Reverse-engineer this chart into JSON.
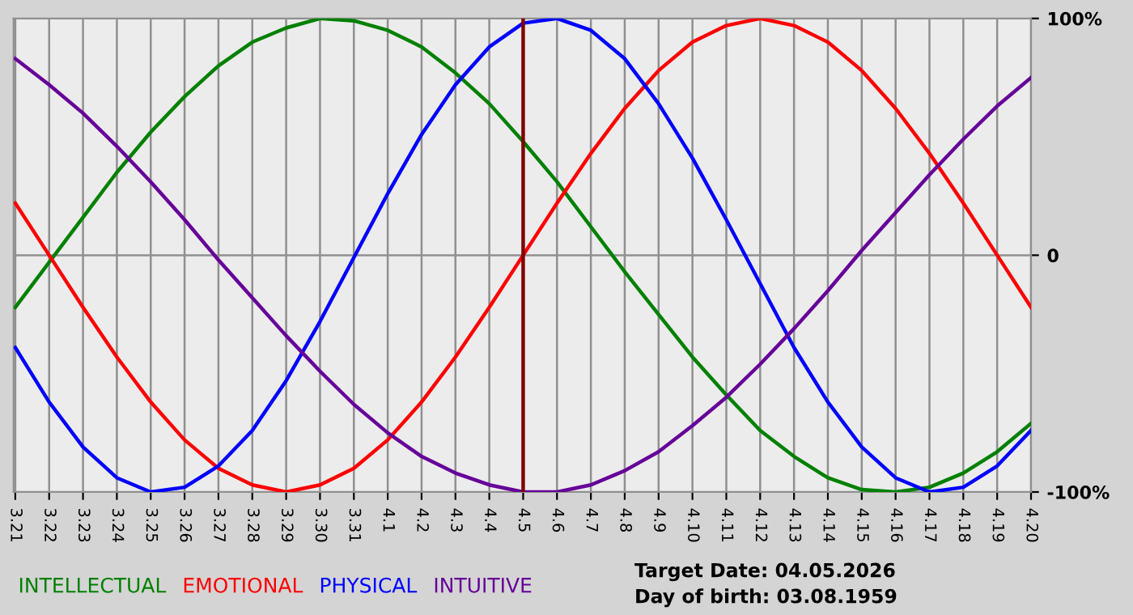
{
  "chart_data": {
    "type": "line",
    "categories": [
      "3.21",
      "3.22",
      "3.23",
      "3.24",
      "3.25",
      "3.26",
      "3.27",
      "3.28",
      "3.29",
      "3.30",
      "3.31",
      "4.1",
      "4.2",
      "4.3",
      "4.4",
      "4.5",
      "4.6",
      "4.7",
      "4.8",
      "4.9",
      "4.10",
      "4.11",
      "4.12",
      "4.13",
      "4.14",
      "4.15",
      "4.16",
      "4.17",
      "4.18",
      "4.19",
      "4.20"
    ],
    "series": [
      {
        "name": "INTELLECTUAL",
        "color": "#008000",
        "values": [
          -22,
          -3,
          16,
          35,
          52,
          67,
          80,
          90,
          96,
          100,
          99,
          95,
          88,
          77,
          64,
          48,
          31,
          12,
          -7,
          -25,
          -43,
          -59,
          -74,
          -85,
          -94,
          -99,
          -100,
          -98,
          -92,
          -83,
          -71
        ]
      },
      {
        "name": "EMOTIONAL",
        "color": "#ff0000",
        "values": [
          22,
          0,
          -22,
          -43,
          -62,
          -78,
          -90,
          -97,
          -100,
          -97,
          -90,
          -78,
          -62,
          -43,
          -22,
          0,
          22,
          43,
          62,
          78,
          90,
          97,
          100,
          97,
          90,
          78,
          62,
          43,
          22,
          0,
          -22
        ]
      },
      {
        "name": "PHYSICAL",
        "color": "#0000ff",
        "values": [
          -39,
          -62,
          -81,
          -94,
          -100,
          -98,
          -89,
          -74,
          -53,
          -28,
          -1,
          26,
          51,
          72,
          88,
          98,
          100,
          95,
          83,
          64,
          41,
          15,
          -12,
          -39,
          -62,
          -81,
          -94,
          -100,
          -98,
          -89,
          -74
        ]
      },
      {
        "name": "INTUITIVE",
        "color": "#660099",
        "values": [
          83,
          72,
          60,
          46,
          31,
          15,
          -2,
          -18,
          -34,
          -49,
          -63,
          -75,
          -85,
          -92,
          -97,
          -100,
          -100,
          -97,
          -91,
          -83,
          -72,
          -60,
          -46,
          -31,
          -15,
          2,
          18,
          34,
          49,
          63,
          75
        ]
      }
    ],
    "ylim": [
      -100,
      100
    ],
    "yticks": [
      {
        "value": 100,
        "label": "100%"
      },
      0,
      {
        "value": -100,
        "label": "-100%"
      }
    ],
    "grid": true,
    "legend": "bottom left",
    "ref_lines": [
      {
        "axis": "x",
        "value": "4.5",
        "color": "#800000"
      }
    ],
    "annotations": [
      "Target Date: 04.05.2026",
      "Day of birth: 03.08.1959"
    ]
  }
}
